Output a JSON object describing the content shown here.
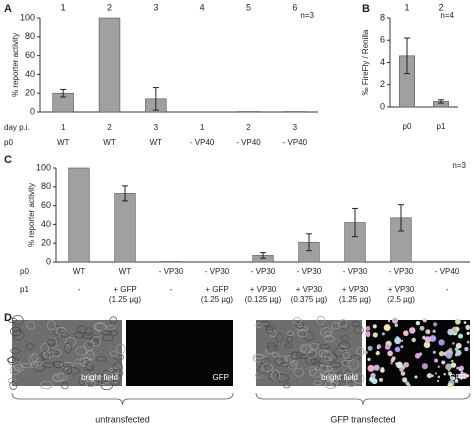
{
  "chart_data": [
    {
      "type": "bar",
      "panel": "A",
      "y_label": "% reporter activity",
      "annotation": "n=3",
      "column_numbers": [
        "1",
        "2",
        "3",
        "4",
        "5",
        "6"
      ],
      "values": [
        20,
        100,
        14,
        0,
        0.5,
        0.5
      ],
      "errors": [
        4,
        0,
        12,
        0,
        0,
        0
      ],
      "color": "#a0a0a0",
      "ylim": [
        0,
        100
      ],
      "yticks": [
        0,
        20,
        40,
        60,
        80,
        100
      ],
      "rows": [
        {
          "name": "day p.i.",
          "labels": [
            [
              "1"
            ],
            [
              "2"
            ],
            [
              "3"
            ],
            [
              "1"
            ],
            [
              "2"
            ],
            [
              "3"
            ]
          ]
        },
        {
          "name": "p0",
          "labels": [
            [
              "WT"
            ],
            [
              "WT"
            ],
            [
              "WT"
            ],
            [
              "- VP40"
            ],
            [
              "- VP40"
            ],
            [
              "- VP40"
            ]
          ]
        }
      ]
    },
    {
      "type": "bar",
      "panel": "B",
      "y_label": "‰ FireFly / Renilla",
      "annotation": "n=4",
      "column_numbers": [
        "1",
        "2"
      ],
      "values": [
        4.6,
        0.5
      ],
      "errors": [
        1.6,
        0.15
      ],
      "color": "#a0a0a0",
      "ylim": [
        0,
        8
      ],
      "yticks": [
        0,
        2,
        4,
        6,
        8
      ],
      "rows": [
        {
          "labels": [
            [
              "p0"
            ],
            [
              "p1"
            ]
          ]
        }
      ]
    },
    {
      "type": "bar",
      "panel": "C",
      "y_label": "% reporter activity",
      "annotation": "n=3",
      "values": [
        100,
        73,
        0.5,
        0.3,
        7,
        21,
        42,
        47,
        0.3
      ],
      "errors": [
        0,
        8,
        0,
        0,
        3,
        9,
        15,
        14,
        0
      ],
      "color": "#a0a0a0",
      "ylim": [
        0,
        100
      ],
      "yticks": [
        0,
        20,
        40,
        60,
        80,
        100
      ],
      "rows": [
        {
          "name": "p0",
          "labels": [
            [
              "WT"
            ],
            [
              "WT"
            ],
            [
              "- VP30"
            ],
            [
              "- VP30"
            ],
            [
              "- VP30"
            ],
            [
              "- VP30"
            ],
            [
              "- VP30"
            ],
            [
              "- VP30"
            ],
            [
              "- VP40"
            ]
          ]
        },
        {
          "name": "p1",
          "labels": [
            [
              "-"
            ],
            [
              "+ GFP",
              "(1.25 µg)"
            ],
            [
              "-"
            ],
            [
              "+ GFP",
              "(1.25 µg)"
            ],
            [
              "+ VP30",
              "(0.125 µg)"
            ],
            [
              "+ VP30",
              "(0.375 µg)"
            ],
            [
              "+ VP30",
              "(1.25 µg)"
            ],
            [
              "+ VP30",
              "(2.5 µg)"
            ],
            [
              "-"
            ]
          ]
        }
      ]
    }
  ],
  "panel_d": {
    "panel": "D",
    "images": [
      {
        "caption": "bright field"
      },
      {
        "caption": "GFP"
      },
      {
        "caption": "bright field"
      },
      {
        "caption": "GFP"
      }
    ],
    "groups": [
      "untransfected",
      "GFP transfected"
    ]
  }
}
